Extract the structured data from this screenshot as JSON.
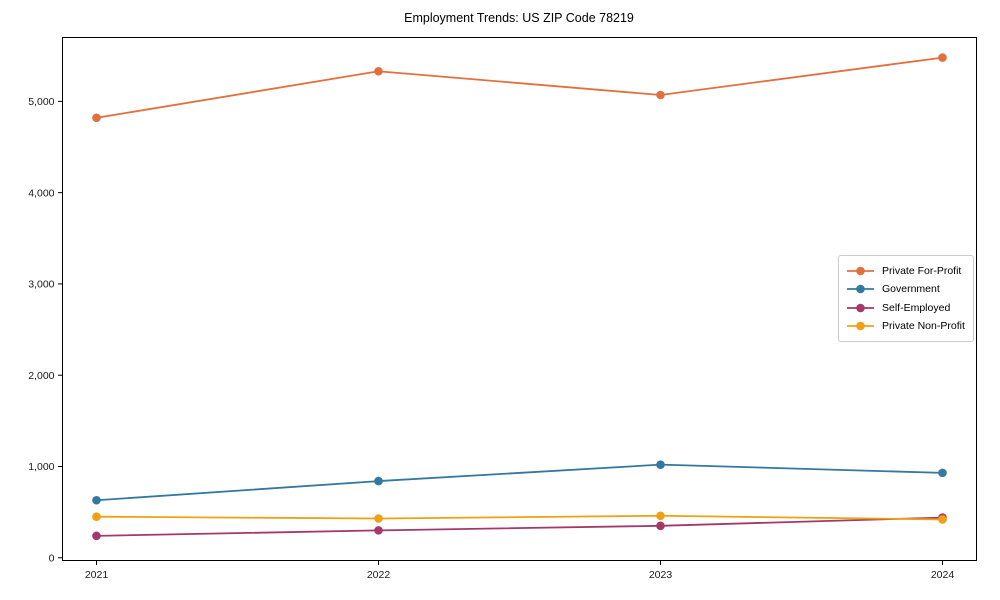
{
  "figure": {
    "background": "#ffffff",
    "axis_color": "#000000",
    "tick_label_color": "#1a1a1a",
    "legend_border_color": "#cccccc"
  },
  "chart_data": {
    "type": "line",
    "title": "Employment Trends: US ZIP Code 78219",
    "xlabel": "",
    "ylabel": "",
    "categories": [
      "2021",
      "2022",
      "2023",
      "2024"
    ],
    "series": [
      {
        "name": "Private For-Profit",
        "color": "#E2703E",
        "values": [
          4820,
          5330,
          5070,
          5480
        ]
      },
      {
        "name": "Government",
        "color": "#31799E",
        "values": [
          630,
          840,
          1020,
          930
        ]
      },
      {
        "name": "Self-Employed",
        "color": "#A43868",
        "values": [
          240,
          300,
          350,
          440
        ]
      },
      {
        "name": "Private Non-Profit",
        "color": "#F0A010",
        "values": [
          450,
          430,
          460,
          420
        ]
      }
    ],
    "ylim": [
      -30,
      5700
    ],
    "yticks": [
      0,
      1000,
      2000,
      3000,
      4000,
      5000
    ],
    "ytick_labels": [
      "0",
      "1,000",
      "2,000",
      "3,000",
      "4,000",
      "5,000"
    ],
    "grid": false,
    "legend_position": "right-middle",
    "marker": "circle",
    "marker_radius": 4.3,
    "line_width": 1.8
  }
}
